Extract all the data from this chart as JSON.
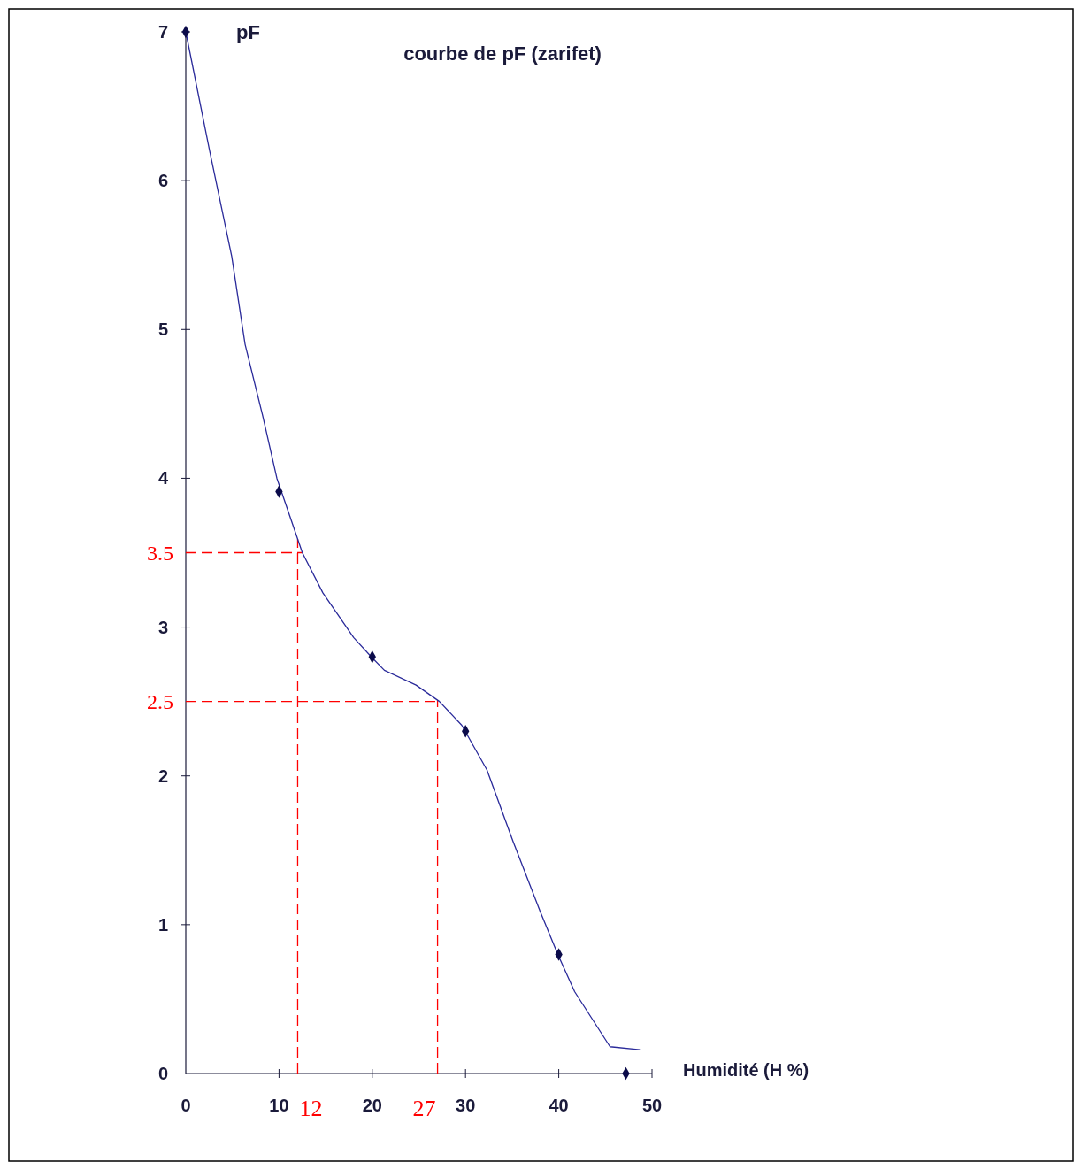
{
  "chart_data": {
    "type": "line",
    "title": "courbe de pF (zarifet)",
    "xlabel": "Humidité (H %)",
    "ylabel": "pF",
    "xlim": [
      0,
      50
    ],
    "xticks": [
      0,
      10,
      20,
      30,
      40,
      50
    ],
    "ylim": [
      0,
      7
    ],
    "yticks": [
      0,
      1,
      2,
      3,
      4,
      5,
      6,
      7
    ],
    "grid": false,
    "series": [
      {
        "color": "#2a2a9a",
        "marker": "none",
        "line_style": "solid",
        "x": [
          0,
          2.56,
          4.93,
          6.36,
          8.25,
          9.77,
          12.5,
          14.7,
          18.0,
          19.9,
          21.3,
          24.7,
          27.2,
          29.6,
          32.3,
          35.1,
          38.0,
          39.9,
          41.7,
          45.5,
          48.7
        ],
        "values": [
          7,
          6.2,
          5.49,
          4.9,
          4.42,
          4.0,
          3.5,
          3.23,
          2.93,
          2.8,
          2.71,
          2.61,
          2.5,
          2.34,
          2.04,
          1.56,
          1.09,
          0.8,
          0.55,
          0.18,
          0.16
        ]
      },
      {
        "type": "scatter",
        "color": "#0b0b4a",
        "marker": "diamond",
        "x": [
          0,
          10,
          20,
          30,
          40,
          47.2
        ],
        "values": [
          7,
          3.91,
          2.8,
          2.3,
          0.8,
          0
        ]
      }
    ],
    "ref_lines": [
      {
        "axis": "y",
        "value": 3.5,
        "label": "3.5",
        "color": "#ff0000",
        "line_style": "dashed"
      },
      {
        "axis": "y",
        "value": 2.5,
        "label": "2.5",
        "color": "#ff0000",
        "line_style": "dashed"
      },
      {
        "axis": "x",
        "value": 12,
        "label": "12",
        "color": "#ff0000",
        "line_style": "dashed"
      },
      {
        "axis": "x",
        "value": 27,
        "label": "27",
        "color": "#ff0000",
        "line_style": "dashed"
      }
    ]
  }
}
